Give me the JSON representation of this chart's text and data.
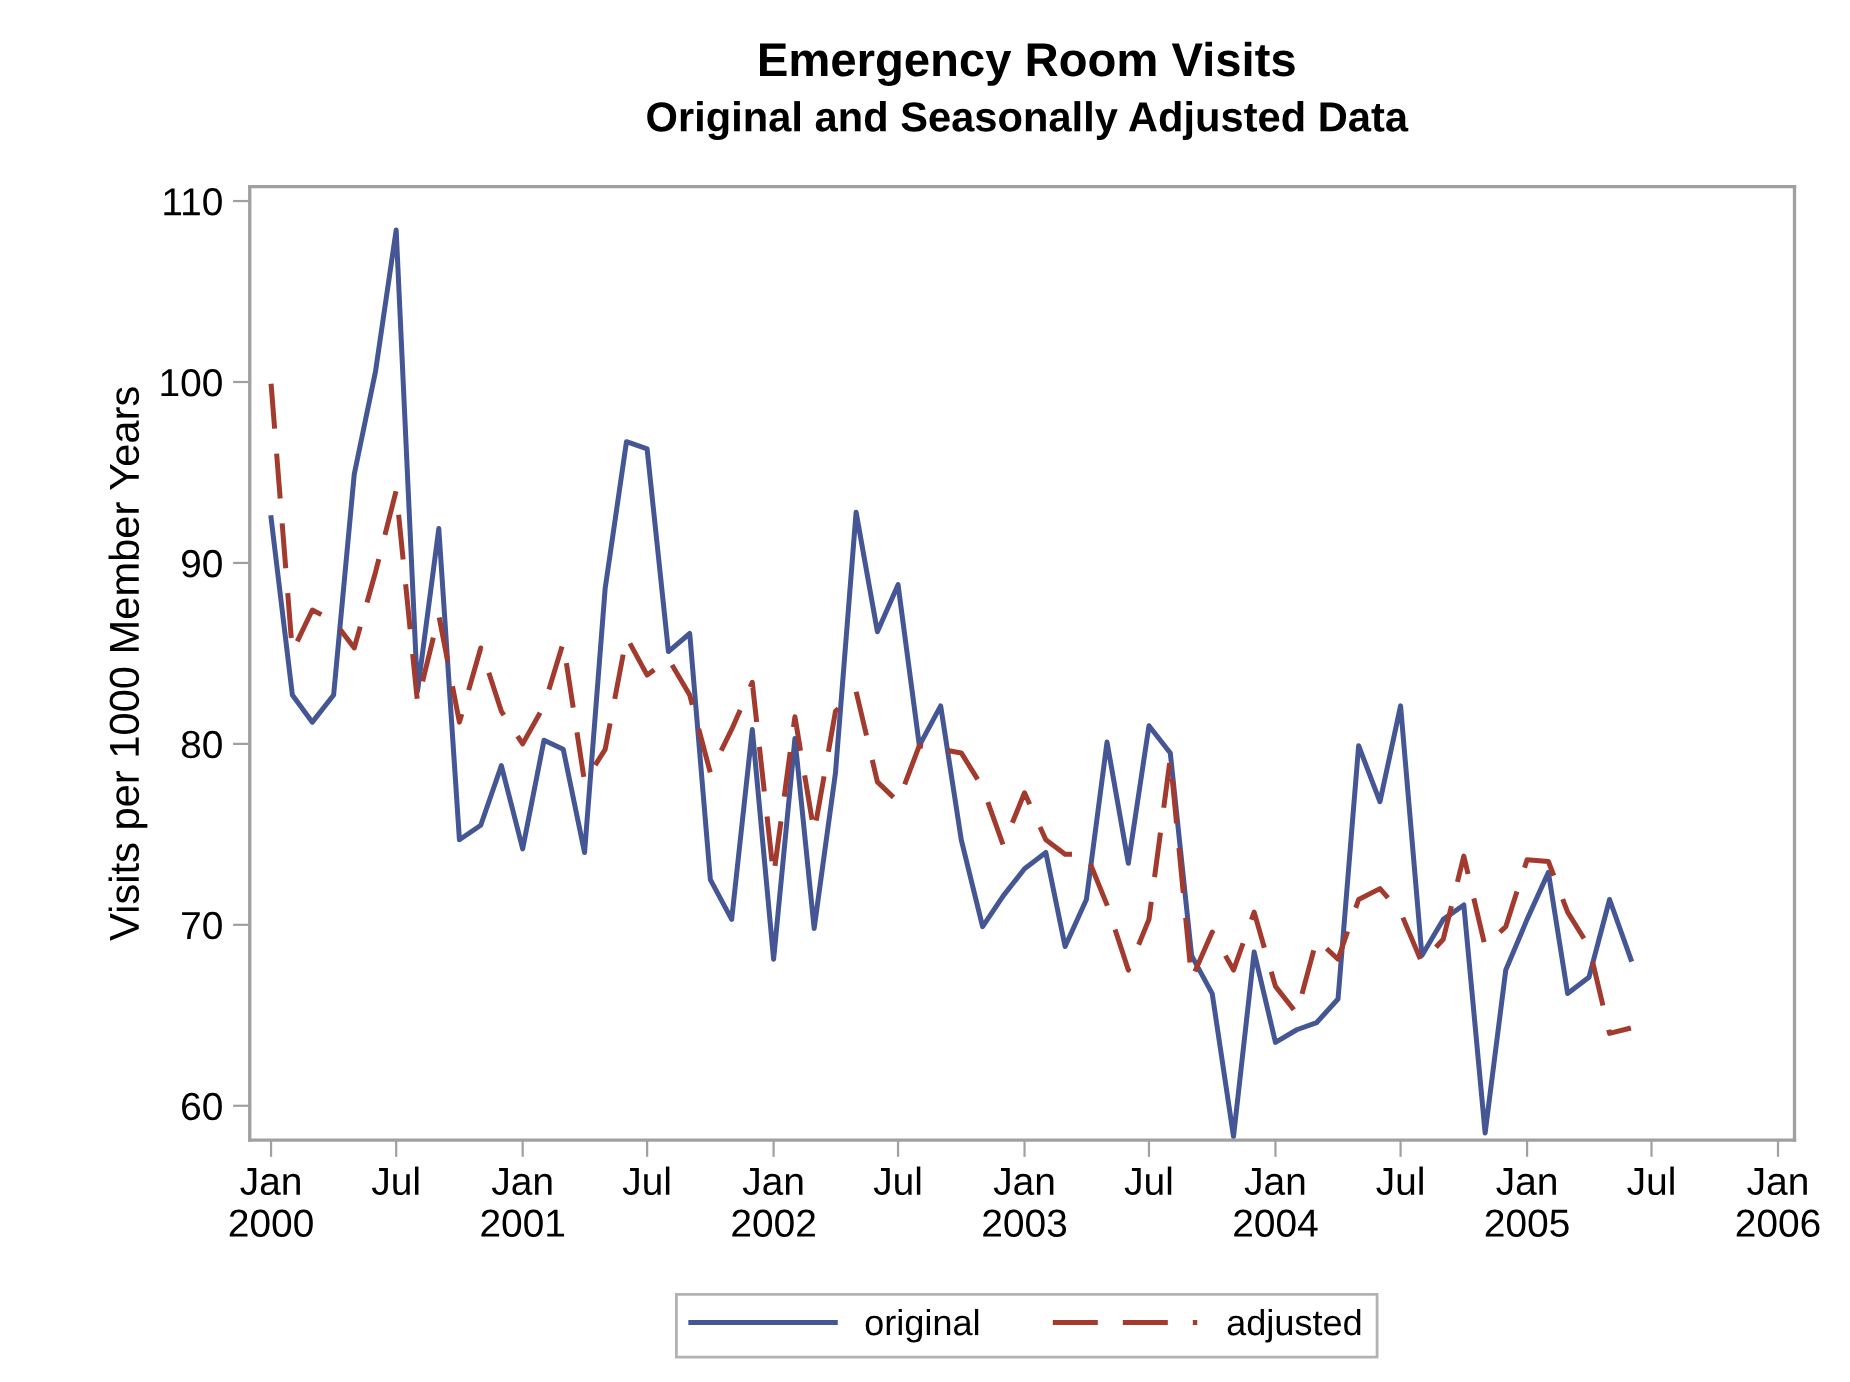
{
  "chart_data": {
    "type": "line",
    "title": "Emergency Room Visits",
    "subtitle": "Original and Seasonally Adjusted Data",
    "ylabel": "Visits per 1000 Member Years",
    "x": [
      "2000-01",
      "2000-02",
      "2000-03",
      "2000-04",
      "2000-05",
      "2000-06",
      "2000-07",
      "2000-08",
      "2000-09",
      "2000-10",
      "2000-11",
      "2000-12",
      "2001-01",
      "2001-02",
      "2001-03",
      "2001-04",
      "2001-05",
      "2001-06",
      "2001-07",
      "2001-08",
      "2001-09",
      "2001-10",
      "2001-11",
      "2001-12",
      "2002-01",
      "2002-02",
      "2002-03",
      "2002-04",
      "2002-05",
      "2002-06",
      "2002-07",
      "2002-08",
      "2002-09",
      "2002-10",
      "2002-11",
      "2002-12",
      "2003-01",
      "2003-02",
      "2003-03",
      "2003-04",
      "2003-05",
      "2003-06",
      "2003-07",
      "2003-08",
      "2003-09",
      "2003-10",
      "2003-11",
      "2003-12",
      "2004-01",
      "2004-02",
      "2004-03",
      "2004-04",
      "2004-05",
      "2004-06",
      "2004-07",
      "2004-08",
      "2004-09",
      "2004-10",
      "2004-11",
      "2004-12",
      "2005-01",
      "2005-02",
      "2005-03",
      "2005-04",
      "2005-05",
      "2005-06"
    ],
    "series": [
      {
        "name": "original",
        "color": "#445694",
        "line_style": "solid",
        "values": [
          92.5,
          82.7,
          81.2,
          82.7,
          94.9,
          100.6,
          108.4,
          82.9,
          91.9,
          74.7,
          75.5,
          78.8,
          74.2,
          80.2,
          79.7,
          74.0,
          88.6,
          96.7,
          96.3,
          85.1,
          86.1,
          72.5,
          70.3,
          80.8,
          68.1,
          80.3,
          69.8,
          78.4,
          92.8,
          86.2,
          88.8,
          79.9,
          82.1,
          74.7,
          69.9,
          71.6,
          73.1,
          74.0,
          68.8,
          71.4,
          80.1,
          73.4,
          81.0,
          79.5,
          68.3,
          66.2,
          58.3,
          68.5,
          63.5,
          64.2,
          64.6,
          65.9,
          79.9,
          76.8,
          82.1,
          68.3,
          70.3,
          71.1,
          58.5,
          67.5,
          70.3,
          72.9,
          66.2,
          67.1,
          71.4,
          68.1
        ]
      },
      {
        "name": "adjusted",
        "color": "#a23a2e",
        "line_style": "dashed",
        "values": [
          99.9,
          85.1,
          87.4,
          86.8,
          85.3,
          89.5,
          94.0,
          82.3,
          87.1,
          81.2,
          85.3,
          81.8,
          80.0,
          82.1,
          85.6,
          77.9,
          79.7,
          85.9,
          83.8,
          84.7,
          82.7,
          78.4,
          80.8,
          83.4,
          72.7,
          81.5,
          75.1,
          81.8,
          82.9,
          77.9,
          76.8,
          79.9,
          79.7,
          79.5,
          77.6,
          74.4,
          77.3,
          74.7,
          73.9,
          73.9,
          71.1,
          67.5,
          70.3,
          79.2,
          67.0,
          69.6,
          67.5,
          70.7,
          66.6,
          65.1,
          69.2,
          68.1,
          71.4,
          72.0,
          70.7,
          67.9,
          69.2,
          73.8,
          68.8,
          69.9,
          73.6,
          73.5,
          70.7,
          68.8,
          64.0,
          64.3
        ]
      }
    ],
    "xlim": [
      "1999-12-01",
      "2006-01-25"
    ],
    "xticks": [
      {
        "value": "2000-01",
        "label": "Jan\n2000"
      },
      {
        "value": "2000-07",
        "label": "Jul"
      },
      {
        "value": "2001-01",
        "label": "Jan\n2001"
      },
      {
        "value": "2001-07",
        "label": "Jul"
      },
      {
        "value": "2002-01",
        "label": "Jan\n2002"
      },
      {
        "value": "2002-07",
        "label": "Jul"
      },
      {
        "value": "2003-01",
        "label": "Jan\n2003"
      },
      {
        "value": "2003-07",
        "label": "Jul"
      },
      {
        "value": "2004-01",
        "label": "Jan\n2004"
      },
      {
        "value": "2004-07",
        "label": "Jul"
      },
      {
        "value": "2005-01",
        "label": "Jan\n2005"
      },
      {
        "value": "2005-07",
        "label": "Jul"
      },
      {
        "value": "2006-01",
        "label": "Jan\n2006"
      }
    ],
    "ylim": [
      58.1,
      110.8
    ],
    "yticks": [
      60,
      70,
      80,
      90,
      100,
      110
    ],
    "grid": false,
    "legend": "bottom"
  }
}
